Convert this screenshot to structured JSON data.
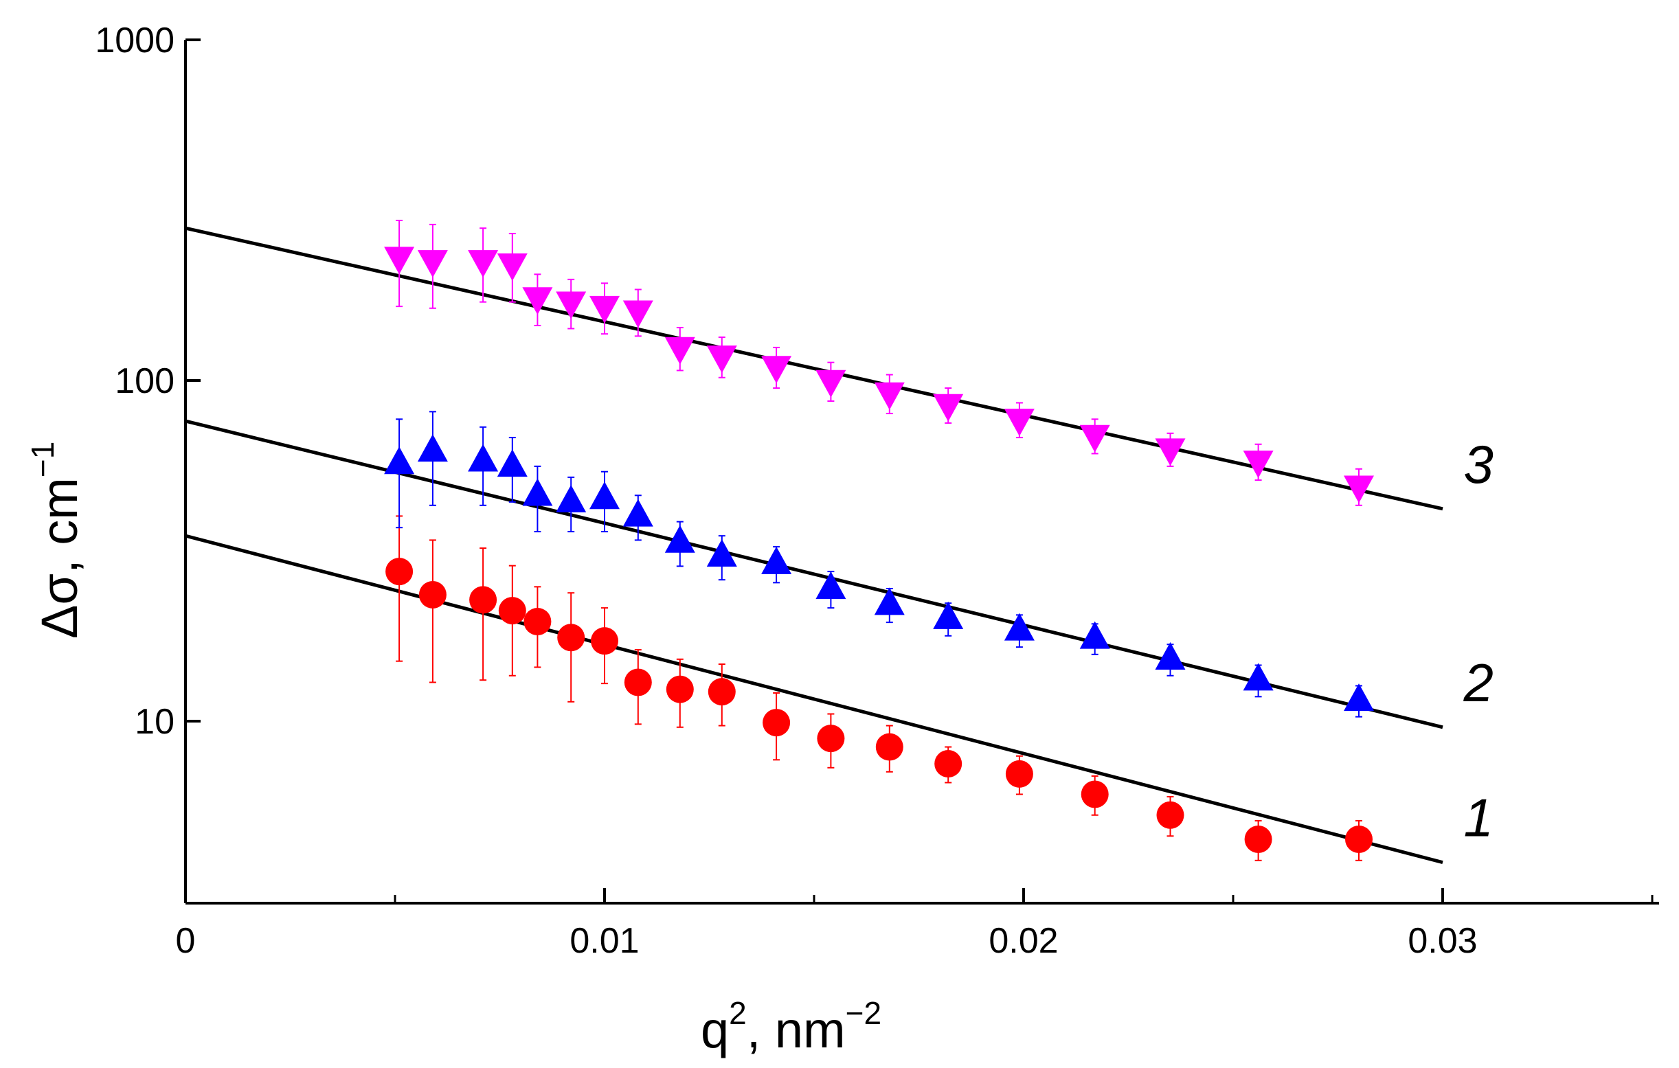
{
  "chart_data": {
    "type": "scatter",
    "title": "",
    "xlabel": {
      "main": "q",
      "sup1": "2",
      "mid": ", nm",
      "sup2": "−2"
    },
    "ylabel": {
      "main": "Δσ, cm",
      "sup": "−1"
    },
    "xlim": [
      0,
      0.035
    ],
    "ylim": [
      3.5,
      1000
    ],
    "yscale": "log",
    "x_ticks": [
      0,
      0.01,
      0.02,
      0.03
    ],
    "x_tick_labels": [
      "0",
      "0.01",
      "0.02",
      "0.03"
    ],
    "y_ticks": [
      10,
      100,
      1000
    ],
    "y_tick_labels": [
      "10",
      "100",
      "1000"
    ],
    "grid": false,
    "legend": "none",
    "x": [
      0.0051,
      0.0059,
      0.0071,
      0.0078,
      0.0084,
      0.0092,
      0.01,
      0.0108,
      0.0118,
      0.0128,
      0.0141,
      0.0154,
      0.0168,
      0.0182,
      0.0199,
      0.0217,
      0.0235,
      0.0256,
      0.028
    ],
    "series": [
      {
        "name": "1",
        "label": "1",
        "marker": "circle",
        "color": "#ff0000",
        "values": [
          27.5,
          23.5,
          22.7,
          21.1,
          19.6,
          17.6,
          17.2,
          13.0,
          12.4,
          12.2,
          9.9,
          8.9,
          8.4,
          7.5,
          7.0,
          6.1,
          5.3,
          4.5,
          4.5
        ],
        "err": [
          12.5,
          10.5,
          9.5,
          7.5,
          5.2,
          6.2,
          4.3,
          3.2,
          2.8,
          2.5,
          2.2,
          1.6,
          1.3,
          0.9,
          0.9,
          0.8,
          0.7,
          0.6,
          0.6
        ],
        "fit": {
          "intercept": 35.0,
          "end_value": 3.85
        }
      },
      {
        "name": "2",
        "label": "2",
        "marker": "triangle-up",
        "color": "#0000ff",
        "values": [
          57,
          62,
          58,
          56,
          46,
          44,
          45,
          40,
          33.5,
          30.5,
          29,
          24.5,
          22,
          20,
          18.5,
          17.5,
          15.2,
          13.2,
          11.5
        ],
        "err": [
          20,
          19,
          15,
          12,
          10,
          8,
          9,
          6,
          5,
          4.5,
          3.5,
          3.0,
          2.5,
          2.2,
          2.0,
          1.8,
          1.6,
          1.4,
          1.2
        ],
        "fit": {
          "intercept": 76.0,
          "end_value": 9.6
        }
      },
      {
        "name": "3",
        "label": "3",
        "marker": "triangle-down",
        "color": "#ff00ff",
        "values": [
          230,
          225,
          225,
          220,
          175,
          170,
          165,
          160,
          125,
          118,
          110,
          100,
          92,
          85,
          77,
          69,
          63,
          58,
          49
        ],
        "err": [
          65,
          62,
          55,
          50,
          30,
          28,
          28,
          25,
          18,
          16,
          15,
          13,
          12,
          10,
          9,
          8,
          7,
          7,
          6
        ],
        "fit": {
          "intercept": 280.0,
          "end_value": 42.0
        }
      }
    ]
  }
}
